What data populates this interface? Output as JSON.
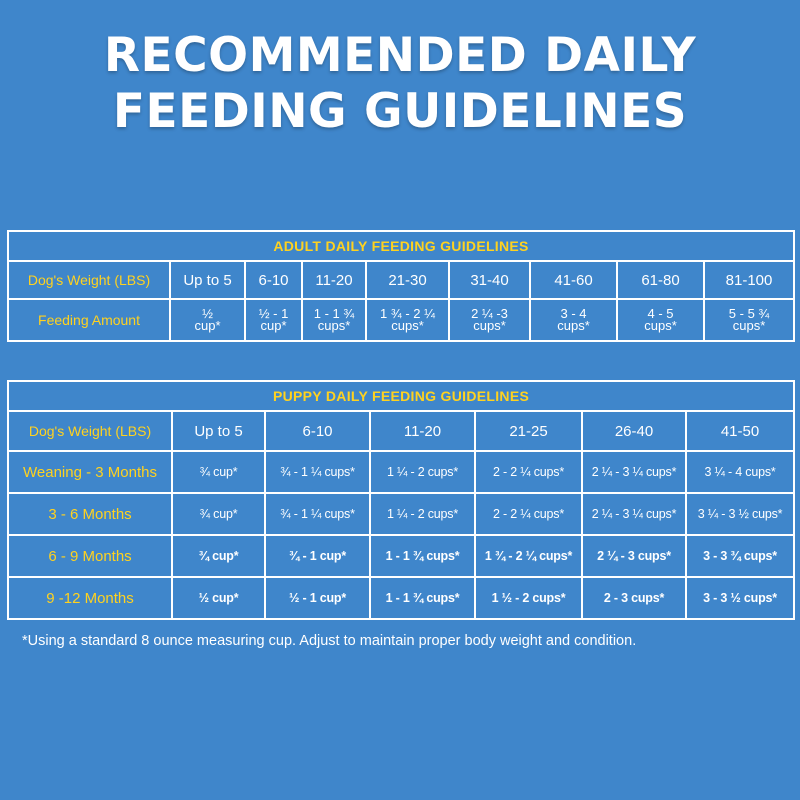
{
  "title": {
    "line1": "RECOMMENDED DAILY",
    "line2": "FEEDING GUIDELINES"
  },
  "adult": {
    "caption": "ADULT DAILY FEEDING GUIDELINES",
    "weight_label": "Dog's Weight (LBS)",
    "amount_label": "Feeding Amount",
    "weights": [
      "Up to 5",
      "6-10",
      "11-20",
      "21-30",
      "31-40",
      "41-60",
      "61-80",
      "81-100"
    ],
    "amounts": [
      {
        "top": "½",
        "bottom": "cup*"
      },
      {
        "top": "½ - 1",
        "bottom": "cup*"
      },
      {
        "top": "1 - 1 ¾",
        "bottom": "cups*"
      },
      {
        "top": "1 ¾ - 2 ¼",
        "bottom": "cups*"
      },
      {
        "top": "2 ¼ -3",
        "bottom": "cups*"
      },
      {
        "top": "3 - 4",
        "bottom": "cups*"
      },
      {
        "top": "4 - 5",
        "bottom": "cups*"
      },
      {
        "top": "5 - 5 ¾",
        "bottom": "cups*"
      }
    ]
  },
  "puppy": {
    "caption": "PUPPY DAILY FEEDING GUIDELINES",
    "weight_label": "Dog's Weight (LBS)",
    "weights": [
      "Up to 5",
      "6-10",
      "11-20",
      "21-25",
      "26-40",
      "41-50"
    ],
    "rows": [
      {
        "label": "Weaning - 3 Months",
        "values": [
          "¾ cup*",
          "¾ - 1 ¼ cups*",
          "1 ¼ - 2 cups*",
          "2 - 2 ¼ cups*",
          "2 ¼ - 3 ¼ cups*",
          "3 ¼ - 4 cups*"
        ]
      },
      {
        "label": "3 - 6 Months",
        "values": [
          "¾ cup*",
          "¾ - 1 ¼ cups*",
          "1 ¼ - 2 cups*",
          "2 - 2 ¼ cups*",
          "2 ¼ - 3 ¼ cups*",
          "3 ¼ - 3 ½ cups*"
        ]
      },
      {
        "label": "6 - 9 Months",
        "values": [
          "¾ cup*",
          "¾ - 1 cup*",
          "1 - 1 ¾ cups*",
          "1 ¾ - 2 ¼ cups*",
          "2 ¼ - 3 cups*",
          "3 - 3 ¾ cups*"
        ]
      },
      {
        "label": "9 -12 Months",
        "values": [
          "½ cup*",
          "½ - 1 cup*",
          "1 - 1 ¾ cups*",
          "1 ½ - 2 cups*",
          "2 - 3 cups*",
          "3 - 3 ½ cups*"
        ]
      }
    ]
  },
  "footnote": "*Using a standard 8 ounce measuring cup. Adjust to maintain proper body weight and condition.",
  "colors": {
    "background": "#3f86cb",
    "accent": "#ffd21f",
    "text": "#ffffff",
    "border": "#ffffff"
  }
}
